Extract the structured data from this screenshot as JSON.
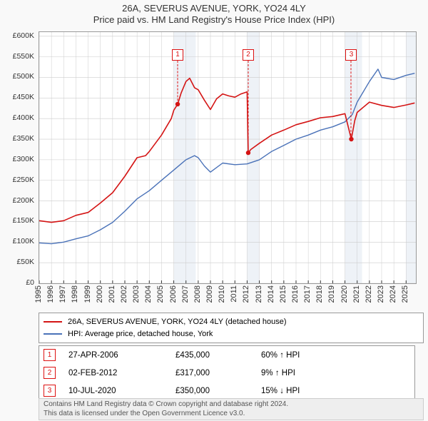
{
  "title": {
    "line1": "26A, SEVERUS AVENUE, YORK, YO24 4LY",
    "line2": "Price paid vs. HM Land Registry's House Price Index (HPI)",
    "fontsize": 13,
    "color": "#333333"
  },
  "chart": {
    "type": "line",
    "background_color": "#ffffff",
    "border_color": "#999999",
    "grid_color": "#cccccc",
    "shaded_band_color": "#eef2f7",
    "x_axis": {
      "years": [
        1995,
        1996,
        1997,
        1998,
        1999,
        2000,
        2001,
        2002,
        2003,
        2004,
        2005,
        2006,
        2007,
        2008,
        2009,
        2010,
        2011,
        2012,
        2013,
        2014,
        2015,
        2016,
        2017,
        2018,
        2019,
        2020,
        2021,
        2022,
        2023,
        2024,
        2025
      ],
      "xlim": [
        1995,
        2025.8
      ],
      "tick_fontsize": 11,
      "tick_rotation_deg": -90
    },
    "y_axis": {
      "ticks": [
        0,
        50000,
        100000,
        150000,
        200000,
        250000,
        300000,
        350000,
        400000,
        450000,
        500000,
        550000,
        600000
      ],
      "tick_labels": [
        "£0",
        "£50K",
        "£100K",
        "£150K",
        "£200K",
        "£250K",
        "£300K",
        "£350K",
        "£400K",
        "£450K",
        "£500K",
        "£550K",
        "£600K"
      ],
      "ylim": [
        0,
        610000
      ],
      "tick_fontsize": 10.5
    },
    "series": [
      {
        "name": "price_paid",
        "label": "26A, SEVERUS AVENUE, YORK, YO24 4LY (detached house)",
        "color": "#d41414",
        "line_width": 1.6,
        "x": [
          1995.0,
          1996.0,
          1997.0,
          1998.0,
          1999.0,
          2000.0,
          2001.0,
          2002.0,
          2003.0,
          2003.7,
          2004.0,
          2005.0,
          2005.8,
          2006.0,
          2006.32,
          2006.6,
          2007.0,
          2007.3,
          2007.7,
          2008.0,
          2008.5,
          2009.0,
          2009.5,
          2010.0,
          2010.5,
          2011.0,
          2011.5,
          2012.0,
          2012.09,
          2012.3,
          2013.0,
          2014.0,
          2015.0,
          2016.0,
          2017.0,
          2018.0,
          2019.0,
          2020.0,
          2020.52,
          2020.8,
          2021.0,
          2022.0,
          2023.0,
          2024.0,
          2025.0,
          2025.7
        ],
        "y": [
          152000,
          148000,
          152000,
          165000,
          172000,
          195000,
          220000,
          260000,
          305000,
          310000,
          320000,
          360000,
          400000,
          420000,
          435000,
          462000,
          490000,
          498000,
          475000,
          470000,
          445000,
          422000,
          448000,
          460000,
          455000,
          452000,
          460000,
          465000,
          317000,
          325000,
          340000,
          360000,
          372000,
          385000,
          393000,
          402000,
          405000,
          412000,
          350000,
          395000,
          415000,
          440000,
          432000,
          427000,
          433000,
          438000
        ]
      },
      {
        "name": "hpi",
        "label": "HPI: Average price, detached house, York",
        "color": "#4a72b8",
        "line_width": 1.4,
        "x": [
          1995.0,
          1996.0,
          1997.0,
          1998.0,
          1999.0,
          2000.0,
          2001.0,
          2002.0,
          2003.0,
          2004.0,
          2005.0,
          2006.0,
          2007.0,
          2007.7,
          2008.0,
          2008.5,
          2009.0,
          2010.0,
          2011.0,
          2012.0,
          2013.0,
          2014.0,
          2015.0,
          2016.0,
          2017.0,
          2018.0,
          2019.0,
          2020.0,
          2020.6,
          2021.0,
          2022.0,
          2022.7,
          2023.0,
          2024.0,
          2025.0,
          2025.7
        ],
        "y": [
          98000,
          96000,
          100000,
          108000,
          115000,
          130000,
          148000,
          175000,
          205000,
          225000,
          250000,
          275000,
          300000,
          310000,
          305000,
          285000,
          270000,
          292000,
          288000,
          290000,
          300000,
          320000,
          335000,
          350000,
          360000,
          372000,
          380000,
          392000,
          410000,
          440000,
          490000,
          520000,
          500000,
          495000,
          505000,
          510000
        ]
      }
    ],
    "shaded_bands_x": [
      [
        2006.0,
        2007.8
      ],
      [
        2012.0,
        2013.0
      ],
      [
        2020.0,
        2021.4
      ],
      [
        2025.0,
        2025.8
      ]
    ],
    "sale_markers": [
      {
        "n": "1",
        "date": "27-APR-2006",
        "price": "£435,000",
        "delta": "60% ↑ HPI",
        "x": 2006.32,
        "badge_y": 555000
      },
      {
        "n": "2",
        "date": "02-FEB-2012",
        "price": "£317,000",
        "delta": "9% ↑ HPI",
        "x": 2012.09,
        "badge_y": 555000
      },
      {
        "n": "3",
        "date": "10-JUL-2020",
        "price": "£350,000",
        "delta": "15% ↓ HPI",
        "x": 2020.52,
        "badge_y": 555000
      }
    ]
  },
  "legend": {
    "border_color": "#999999",
    "fontsize": 11
  },
  "markers_table": {
    "border_color": "#999999",
    "badge_border_color": "#d41414",
    "fontsize": 11.5
  },
  "attribution": {
    "line1": "Contains HM Land Registry data © Crown copyright and database right 2024.",
    "line2": "This data is licensed under the Open Government Licence v3.0.",
    "background_color": "#eeeeee",
    "fontsize": 10
  }
}
